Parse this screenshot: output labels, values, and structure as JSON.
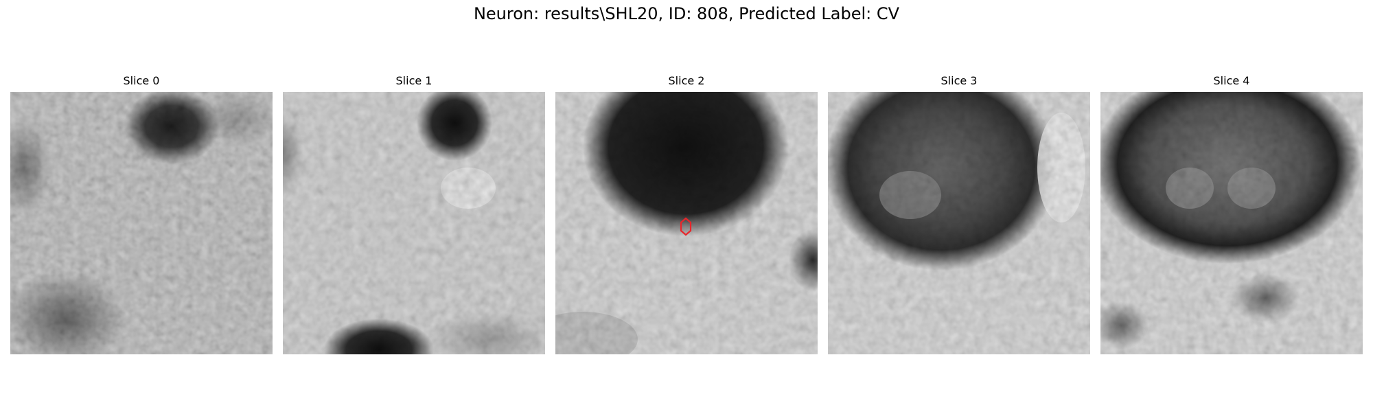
{
  "figure": {
    "title": "Neuron: results\\SHL20, ID: 808, Predicted Label: CV"
  },
  "slices": [
    {
      "title": "Slice 0"
    },
    {
      "title": "Slice 1"
    },
    {
      "title": "Slice 2"
    },
    {
      "title": "Slice 3"
    },
    {
      "title": "Slice 4"
    }
  ],
  "marker": {
    "slice_index": 2,
    "shape": "hexagon-outline",
    "color": "#e8262b"
  }
}
